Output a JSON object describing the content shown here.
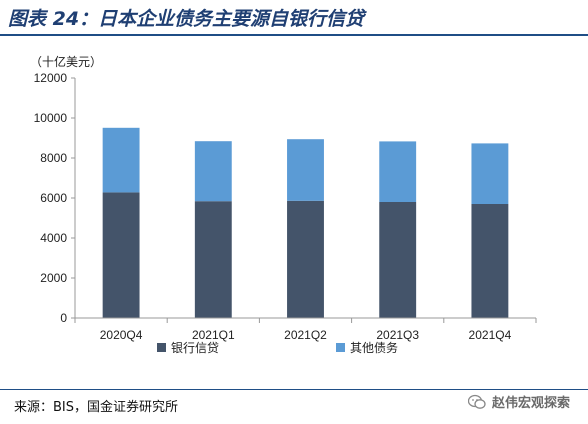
{
  "figure": {
    "title": "图表 24：日本企业债务主要源自银行信贷",
    "source": "来源：BIS，国金证券研究所",
    "watermark": "赵伟宏观探索",
    "watermark_icon": "wechat-icon"
  },
  "chart_data": {
    "type": "bar",
    "stacked": true,
    "unit_label": "（十亿美元）",
    "categories": [
      "2020Q4",
      "2021Q1",
      "2021Q2",
      "2021Q3",
      "2021Q4"
    ],
    "series": [
      {
        "name": "银行信贷",
        "values": [
          6280,
          5840,
          5860,
          5800,
          5700
        ],
        "color": "#44546a"
      },
      {
        "name": "其他债务",
        "values": [
          3230,
          3000,
          3080,
          3030,
          3030
        ],
        "color": "#5b9bd5"
      }
    ],
    "ylim": [
      0,
      12000
    ],
    "yticks": [
      0,
      2000,
      4000,
      6000,
      8000,
      10000,
      12000
    ],
    "grid": false,
    "legend_position": "bottom"
  }
}
